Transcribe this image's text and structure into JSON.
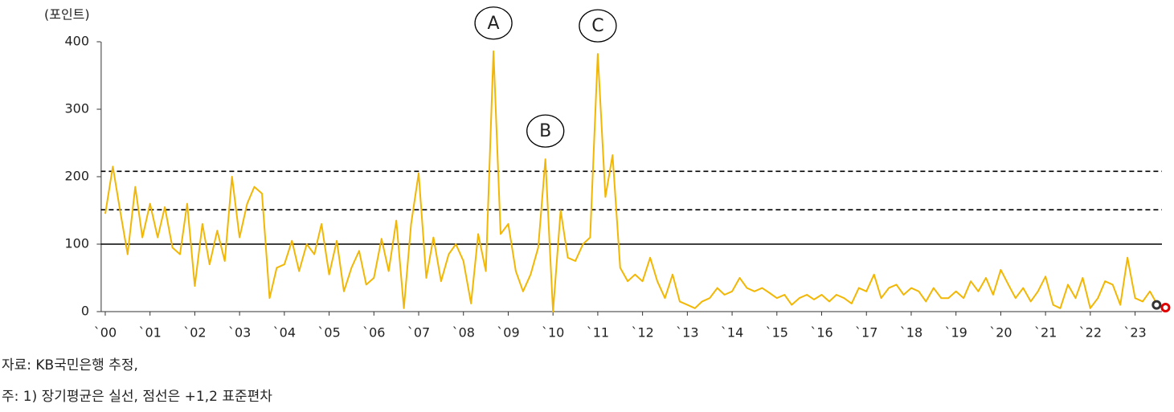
{
  "chart_data": {
    "type": "line",
    "y_label": "(포인트)",
    "x": [
      2000,
      2000.17,
      2000.33,
      2000.5,
      2000.67,
      2000.83,
      2001,
      2001.17,
      2001.33,
      2001.5,
      2001.67,
      2001.83,
      2002,
      2002.17,
      2002.33,
      2002.5,
      2002.67,
      2002.83,
      2003,
      2003.17,
      2003.33,
      2003.5,
      2003.67,
      2003.83,
      2004,
      2004.17,
      2004.33,
      2004.5,
      2004.67,
      2004.83,
      2005,
      2005.17,
      2005.33,
      2005.5,
      2005.67,
      2005.83,
      2006,
      2006.17,
      2006.33,
      2006.5,
      2006.67,
      2006.83,
      2007,
      2007.17,
      2007.33,
      2007.5,
      2007.67,
      2007.83,
      2008,
      2008.17,
      2008.33,
      2008.5,
      2008.67,
      2008.83,
      2009,
      2009.17,
      2009.33,
      2009.5,
      2009.67,
      2009.83,
      2010,
      2010.17,
      2010.33,
      2010.5,
      2010.67,
      2010.83,
      2011,
      2011.17,
      2011.33,
      2011.5,
      2011.67,
      2011.83,
      2012,
      2012.17,
      2012.33,
      2012.5,
      2012.67,
      2012.83,
      2013,
      2013.17,
      2013.33,
      2013.5,
      2013.67,
      2013.83,
      2014,
      2014.17,
      2014.33,
      2014.5,
      2014.67,
      2014.83,
      2015,
      2015.17,
      2015.33,
      2015.5,
      2015.67,
      2015.83,
      2016,
      2016.17,
      2016.33,
      2016.5,
      2016.67,
      2016.83,
      2017,
      2017.17,
      2017.33,
      2017.5,
      2017.67,
      2017.83,
      2018,
      2018.17,
      2018.33,
      2018.5,
      2018.67,
      2018.83,
      2019,
      2019.17,
      2019.33,
      2019.5,
      2019.67,
      2019.83,
      2020,
      2020.17,
      2020.33,
      2020.5,
      2020.67,
      2020.83,
      2021,
      2021.17,
      2021.33,
      2021.5,
      2021.67,
      2021.83,
      2022,
      2022.17,
      2022.33,
      2022.5,
      2022.67,
      2022.83,
      2023,
      2023.17,
      2023.33,
      2023.5
    ],
    "series": [
      {
        "color": "#f2b705",
        "values": [
          145,
          215,
          150,
          85,
          185,
          110,
          160,
          110,
          155,
          95,
          85,
          160,
          38,
          130,
          70,
          120,
          75,
          200,
          110,
          160,
          185,
          175,
          20,
          65,
          70,
          105,
          60,
          100,
          85,
          130,
          55,
          105,
          30,
          65,
          90,
          40,
          50,
          108,
          60,
          135,
          5,
          130,
          205,
          50,
          110,
          45,
          85,
          100,
          75,
          12,
          115,
          60,
          386,
          115,
          130,
          60,
          30,
          55,
          95,
          226,
          0,
          150,
          80,
          75,
          100,
          110,
          382,
          170,
          232,
          65,
          45,
          55,
          45,
          80,
          45,
          20,
          55,
          15,
          10,
          5,
          15,
          20,
          35,
          25,
          30,
          50,
          35,
          30,
          35,
          28,
          20,
          25,
          10,
          20,
          25,
          18,
          25,
          15,
          25,
          20,
          12,
          35,
          30,
          55,
          20,
          35,
          40,
          25,
          35,
          30,
          15,
          35,
          20,
          20,
          30,
          20,
          45,
          30,
          50,
          25,
          62,
          40,
          20,
          35,
          15,
          30,
          52,
          10,
          5,
          40,
          20,
          50,
          5,
          20,
          45,
          40,
          10,
          80,
          20,
          15,
          30,
          10
        ]
      }
    ],
    "xlim": [
      1999.9,
      2023.6
    ],
    "xticks": [
      {
        "value": 2000,
        "label": "`00"
      },
      {
        "value": 2001,
        "label": "`01"
      },
      {
        "value": 2002,
        "label": "`02"
      },
      {
        "value": 2003,
        "label": "`03"
      },
      {
        "value": 2004,
        "label": "`04"
      },
      {
        "value": 2005,
        "label": "`05"
      },
      {
        "value": 2006,
        "label": "`06"
      },
      {
        "value": 2007,
        "label": "`07"
      },
      {
        "value": 2008,
        "label": "`08"
      },
      {
        "value": 2009,
        "label": "`09"
      },
      {
        "value": 2010,
        "label": "`10"
      },
      {
        "value": 2011,
        "label": "`11"
      },
      {
        "value": 2012,
        "label": "`12"
      },
      {
        "value": 2013,
        "label": "`13"
      },
      {
        "value": 2014,
        "label": "`14"
      },
      {
        "value": 2015,
        "label": "`15"
      },
      {
        "value": 2016,
        "label": "`16"
      },
      {
        "value": 2017,
        "label": "`17"
      },
      {
        "value": 2018,
        "label": "`18"
      },
      {
        "value": 2019,
        "label": "`19"
      },
      {
        "value": 2020,
        "label": "`20"
      },
      {
        "value": 2021,
        "label": "`21"
      },
      {
        "value": 2022,
        "label": "`22"
      },
      {
        "value": 2023,
        "label": "`23"
      }
    ],
    "ylim": [
      0,
      400
    ],
    "yticks": [
      0,
      100,
      200,
      300,
      400
    ],
    "reference_lines": [
      {
        "value": 100,
        "style": "solid"
      },
      {
        "value": 151,
        "style": "dashed"
      },
      {
        "value": 208,
        "style": "dashed"
      }
    ],
    "markers": [
      {
        "x": 2023.48,
        "value": 10,
        "color": "#333333"
      },
      {
        "x": 2023.68,
        "value": 6,
        "color": "#e00000"
      }
    ],
    "annotations": [
      {
        "text": "A",
        "x": 2008.67
      },
      {
        "text": "B",
        "x": 2009.83
      },
      {
        "text": "C",
        "x": 2011
      }
    ],
    "source": "자료: KB국민은행 추정,",
    "note": "주: 1) 장기평균은 실선, 점선은 +1,2 표준편차"
  }
}
